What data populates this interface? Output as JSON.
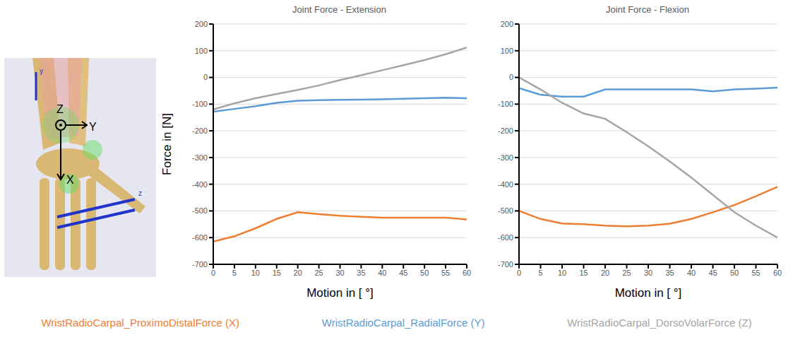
{
  "chart_data": [
    {
      "type": "line",
      "title": "Joint Force - Extension",
      "xlabel": "Motion in [ °]",
      "ylabel": "Force in [N]",
      "x": [
        0,
        5,
        10,
        15,
        20,
        25,
        30,
        35,
        40,
        45,
        50,
        55,
        60
      ],
      "xlim": [
        0,
        60
      ],
      "xticks": [
        0,
        5,
        10,
        15,
        20,
        25,
        30,
        35,
        40,
        45,
        50,
        55,
        60
      ],
      "ylim": [
        -700,
        200
      ],
      "yticks": [
        -700,
        -600,
        -500,
        -400,
        -300,
        -200,
        -100,
        0,
        100,
        200
      ],
      "grid": true,
      "legend": "bottom",
      "series": [
        {
          "name": "WristRadioCarpal_ProximoDistalForce (X)",
          "color": "#ED7D31",
          "values": [
            -615,
            -595,
            -565,
            -530,
            -505,
            -512,
            -518,
            -522,
            -525,
            -525,
            -525,
            -525,
            -532
          ]
        },
        {
          "name": "WristRadioCarpal_RadialForce (Y)",
          "color": "#5B9BD5",
          "values": [
            -128,
            -118,
            -108,
            -95,
            -87,
            -85,
            -84,
            -83,
            -82,
            -80,
            -78,
            -76,
            -78
          ]
        },
        {
          "name": "WristRadioCarpal_DorsoVolarForce (Z)",
          "color": "#A5A5A5",
          "values": [
            -120,
            -97,
            -78,
            -62,
            -47,
            -30,
            -10,
            8,
            27,
            46,
            65,
            87,
            112
          ]
        }
      ]
    },
    {
      "type": "line",
      "title": "Joint Force - Flexion",
      "xlabel": "Motion in [ °]",
      "x": [
        0,
        5,
        10,
        15,
        20,
        25,
        30,
        35,
        40,
        45,
        50,
        55,
        60
      ],
      "xlim": [
        0,
        60
      ],
      "xticks": [
        0,
        5,
        10,
        15,
        20,
        25,
        30,
        35,
        40,
        45,
        50,
        55,
        60
      ],
      "ylim": [
        -700,
        200
      ],
      "yticks": [
        -700,
        -600,
        -500,
        -400,
        -300,
        -200,
        -100,
        0,
        100,
        200
      ],
      "grid": true,
      "legend": "bottom",
      "series": [
        {
          "name": "WristRadioCarpal_ProximoDistalForce (X)",
          "color": "#ED7D31",
          "values": [
            -500,
            -530,
            -547,
            -550,
            -555,
            -558,
            -555,
            -548,
            -530,
            -505,
            -478,
            -445,
            -410
          ]
        },
        {
          "name": "WristRadioCarpal_RadialForce (Y)",
          "color": "#5B9BD5",
          "values": [
            -40,
            -65,
            -72,
            -72,
            -45,
            -45,
            -45,
            -45,
            -45,
            -52,
            -45,
            -42,
            -38
          ]
        },
        {
          "name": "WristRadioCarpal_DorsoVolarForce (Z)",
          "color": "#A5A5A5",
          "values": [
            0,
            -45,
            -95,
            -135,
            -155,
            -205,
            -258,
            -315,
            -375,
            -440,
            -505,
            -555,
            -600
          ]
        }
      ]
    }
  ],
  "illustration": {
    "labels": [
      "Z",
      "Y",
      "X",
      "y",
      "z"
    ]
  }
}
